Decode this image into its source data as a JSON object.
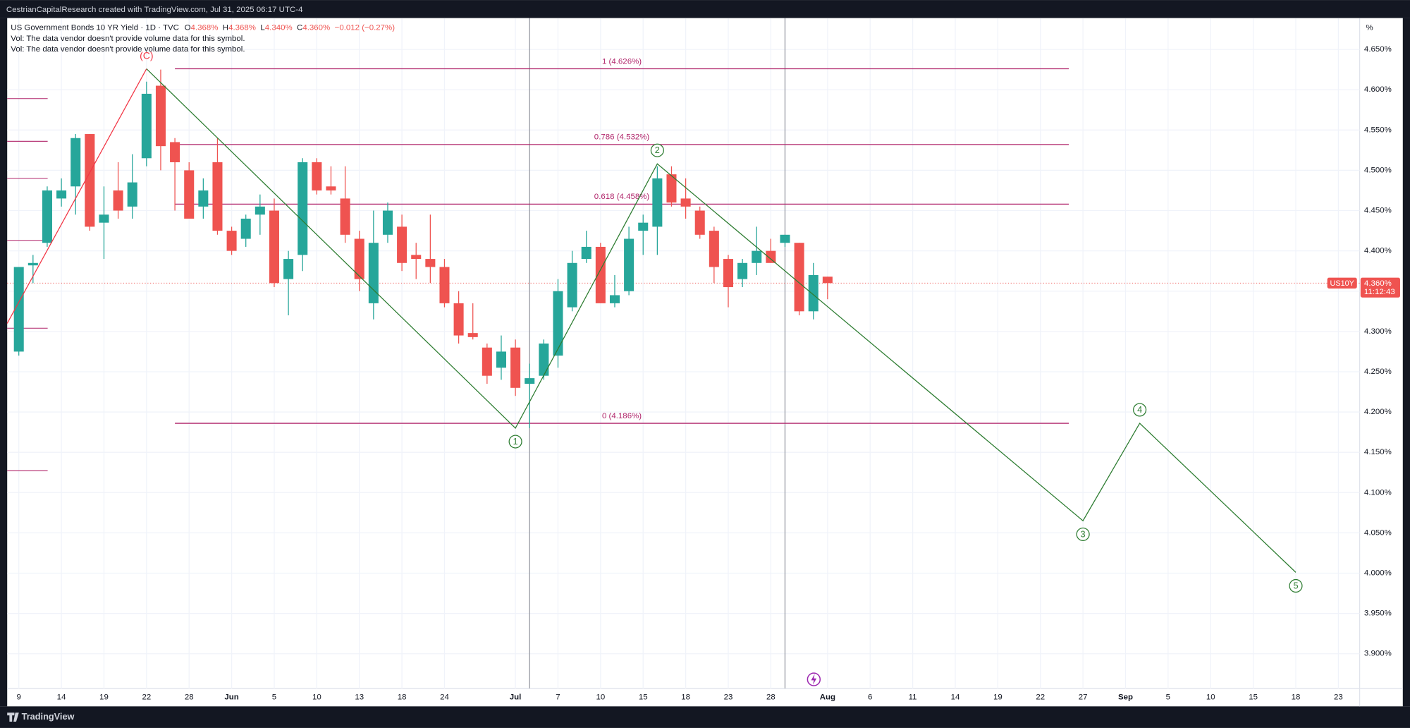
{
  "chart_data": {
    "type": "candlestick",
    "credit": "CestrianCapitalResearch created with TradingView.com, Jul 31, 2025 06:17 UTC-4",
    "title": "US Government Bonds 10 YR Yield · 1D · TVC",
    "ohlc_header": [
      {
        "key": "O",
        "value": "4.368%"
      },
      {
        "key": "H",
        "value": "4.368%"
      },
      {
        "key": "L",
        "value": "4.340%"
      },
      {
        "key": "C",
        "value": "4.360%"
      }
    ],
    "change": "−0.012 (−0.27%)",
    "notes": [
      "Vol: The data vendor doesn't provide volume data for this symbol.",
      "Vol: The data vendor doesn't provide volume data for this symbol."
    ],
    "axis_unit": "%",
    "up_color": "#26a69a",
    "down_color": "#ef5350",
    "grid": true,
    "candles": [
      {
        "o": 4.275,
        "h": 4.38,
        "l": 4.27,
        "c": 4.38
      },
      {
        "o": 4.382,
        "h": 4.395,
        "l": 4.36,
        "c": 4.385
      },
      {
        "o": 4.41,
        "h": 4.48,
        "l": 4.405,
        "c": 4.475
      },
      {
        "o": 4.465,
        "h": 4.49,
        "l": 4.455,
        "c": 4.475
      },
      {
        "o": 4.48,
        "h": 4.545,
        "l": 4.445,
        "c": 4.54
      },
      {
        "o": 4.545,
        "h": 4.545,
        "l": 4.425,
        "c": 4.43
      },
      {
        "o": 4.435,
        "h": 4.48,
        "l": 4.39,
        "c": 4.445
      },
      {
        "o": 4.475,
        "h": 4.51,
        "l": 4.44,
        "c": 4.45
      },
      {
        "o": 4.455,
        "h": 4.52,
        "l": 4.44,
        "c": 4.485
      },
      {
        "o": 4.515,
        "h": 4.61,
        "l": 4.505,
        "c": 4.595
      },
      {
        "o": 4.605,
        "h": 4.625,
        "l": 4.5,
        "c": 4.53
      },
      {
        "o": 4.535,
        "h": 4.54,
        "l": 4.45,
        "c": 4.51
      },
      {
        "o": 4.5,
        "h": 4.51,
        "l": 4.445,
        "c": 4.44
      },
      {
        "o": 4.455,
        "h": 4.49,
        "l": 4.44,
        "c": 4.475
      },
      {
        "o": 4.51,
        "h": 4.54,
        "l": 4.42,
        "c": 4.425
      },
      {
        "o": 4.425,
        "h": 4.43,
        "l": 4.395,
        "c": 4.4
      },
      {
        "o": 4.415,
        "h": 4.445,
        "l": 4.405,
        "c": 4.44
      },
      {
        "o": 4.445,
        "h": 4.47,
        "l": 4.42,
        "c": 4.455
      },
      {
        "o": 4.45,
        "h": 4.465,
        "l": 4.355,
        "c": 4.36
      },
      {
        "o": 4.365,
        "h": 4.4,
        "l": 4.32,
        "c": 4.39
      },
      {
        "o": 4.395,
        "h": 4.515,
        "l": 4.375,
        "c": 4.51
      },
      {
        "o": 4.51,
        "h": 4.515,
        "l": 4.47,
        "c": 4.475
      },
      {
        "o": 4.48,
        "h": 4.505,
        "l": 4.47,
        "c": 4.475
      },
      {
        "o": 4.465,
        "h": 4.505,
        "l": 4.41,
        "c": 4.42
      },
      {
        "o": 4.415,
        "h": 4.425,
        "l": 4.35,
        "c": 4.365
      },
      {
        "o": 4.335,
        "h": 4.45,
        "l": 4.315,
        "c": 4.41
      },
      {
        "o": 4.42,
        "h": 4.46,
        "l": 4.41,
        "c": 4.45
      },
      {
        "o": 4.43,
        "h": 4.445,
        "l": 4.375,
        "c": 4.385
      },
      {
        "o": 4.395,
        "h": 4.41,
        "l": 4.365,
        "c": 4.39
      },
      {
        "o": 4.39,
        "h": 4.445,
        "l": 4.36,
        "c": 4.38
      },
      {
        "o": 4.38,
        "h": 4.39,
        "l": 4.33,
        "c": 4.335
      },
      {
        "o": 4.335,
        "h": 4.35,
        "l": 4.285,
        "c": 4.295
      },
      {
        "o": 4.298,
        "h": 4.335,
        "l": 4.29,
        "c": 4.293
      },
      {
        "o": 4.28,
        "h": 4.285,
        "l": 4.235,
        "c": 4.245
      },
      {
        "o": 4.255,
        "h": 4.295,
        "l": 4.24,
        "c": 4.275
      },
      {
        "o": 4.28,
        "h": 4.29,
        "l": 4.22,
        "c": 4.23
      },
      {
        "o": 4.235,
        "h": 4.26,
        "l": 4.18,
        "c": 4.242
      },
      {
        "o": 4.245,
        "h": 4.29,
        "l": 4.24,
        "c": 4.285
      },
      {
        "o": 4.27,
        "h": 4.365,
        "l": 4.255,
        "c": 4.35
      },
      {
        "o": 4.33,
        "h": 4.4,
        "l": 4.325,
        "c": 4.385
      },
      {
        "o": 4.39,
        "h": 4.425,
        "l": 4.385,
        "c": 4.405
      },
      {
        "o": 4.405,
        "h": 4.41,
        "l": 4.335,
        "c": 4.335
      },
      {
        "o": 4.335,
        "h": 4.37,
        "l": 4.33,
        "c": 4.345
      },
      {
        "o": 4.35,
        "h": 4.43,
        "l": 4.345,
        "c": 4.415
      },
      {
        "o": 4.425,
        "h": 4.445,
        "l": 4.395,
        "c": 4.435
      },
      {
        "o": 4.43,
        "h": 4.505,
        "l": 4.395,
        "c": 4.49
      },
      {
        "o": 4.495,
        "h": 4.505,
        "l": 4.455,
        "c": 4.46
      },
      {
        "o": 4.465,
        "h": 4.49,
        "l": 4.44,
        "c": 4.455
      },
      {
        "o": 4.45,
        "h": 4.455,
        "l": 4.415,
        "c": 4.42
      },
      {
        "o": 4.425,
        "h": 4.43,
        "l": 4.36,
        "c": 4.38
      },
      {
        "o": 4.39,
        "h": 4.395,
        "l": 4.33,
        "c": 4.355
      },
      {
        "o": 4.365,
        "h": 4.39,
        "l": 4.355,
        "c": 4.385
      },
      {
        "o": 4.385,
        "h": 4.43,
        "l": 4.37,
        "c": 4.4
      },
      {
        "o": 4.4,
        "h": 4.415,
        "l": 4.385,
        "c": 4.385
      },
      {
        "o": 4.41,
        "h": 4.42,
        "l": 4.405,
        "c": 4.42
      },
      {
        "o": 4.41,
        "h": 4.41,
        "l": 4.32,
        "c": 4.325
      },
      {
        "o": 4.325,
        "h": 4.385,
        "l": 4.315,
        "c": 4.37
      },
      {
        "o": 4.368,
        "h": 4.368,
        "l": 4.34,
        "c": 4.36
      }
    ],
    "xlim": [
      0.18,
      95.5
    ],
    "xticks": [
      {
        "value": 1,
        "label": "9"
      },
      {
        "value": 4,
        "label": "14"
      },
      {
        "value": 7,
        "label": "19"
      },
      {
        "value": 10,
        "label": "22"
      },
      {
        "value": 13,
        "label": "28"
      },
      {
        "value": 16,
        "label": "Jun"
      },
      {
        "value": 19,
        "label": "5"
      },
      {
        "value": 22,
        "label": "10"
      },
      {
        "value": 25,
        "label": "13"
      },
      {
        "value": 28,
        "label": "18"
      },
      {
        "value": 31,
        "label": "24"
      },
      {
        "value": 36,
        "label": "Jul"
      },
      {
        "value": 39,
        "label": "7"
      },
      {
        "value": 42,
        "label": "10"
      },
      {
        "value": 45,
        "label": "15"
      },
      {
        "value": 48,
        "label": "18"
      },
      {
        "value": 51,
        "label": "23"
      },
      {
        "value": 54,
        "label": "28"
      },
      {
        "value": 58,
        "label": "Aug"
      },
      {
        "value": 61,
        "label": "6"
      },
      {
        "value": 64,
        "label": "11"
      },
      {
        "value": 67,
        "label": "14"
      },
      {
        "value": 70,
        "label": "19"
      },
      {
        "value": 73,
        "label": "22"
      },
      {
        "value": 76,
        "label": "27"
      },
      {
        "value": 79,
        "label": "Sep"
      },
      {
        "value": 82,
        "label": "5"
      },
      {
        "value": 85,
        "label": "10"
      },
      {
        "value": 88,
        "label": "15"
      },
      {
        "value": 91,
        "label": "18"
      },
      {
        "value": 94,
        "label": "23"
      }
    ],
    "ylim": [
      3.857,
      4.689
    ],
    "yticks": [
      {
        "value": 4.65,
        "label": "4.650%"
      },
      {
        "value": 4.6,
        "label": "4.600%"
      },
      {
        "value": 4.55,
        "label": "4.550%"
      },
      {
        "value": 4.5,
        "label": "4.500%"
      },
      {
        "value": 4.45,
        "label": "4.450%"
      },
      {
        "value": 4.4,
        "label": "4.400%"
      },
      {
        "value": 4.35,
        "label": "4.350%"
      },
      {
        "value": 4.3,
        "label": "4.300%"
      },
      {
        "value": 4.25,
        "label": "4.250%"
      },
      {
        "value": 4.2,
        "label": "4.200%"
      },
      {
        "value": 4.15,
        "label": "4.150%"
      },
      {
        "value": 4.1,
        "label": "4.100%"
      },
      {
        "value": 4.05,
        "label": "4.050%"
      },
      {
        "value": 4,
        "label": "4.000%"
      },
      {
        "value": 3.95,
        "label": "3.950%"
      },
      {
        "value": 3.9,
        "label": "3.900%"
      }
    ],
    "fib_levels": [
      {
        "value": 4.626,
        "label": "1 (4.626%)"
      },
      {
        "value": 4.532,
        "label": "0.786 (4.532%)"
      },
      {
        "value": 4.458,
        "label": "0.618 (4.458%)"
      },
      {
        "value": 4.186,
        "label": "0 (4.186%)"
      }
    ],
    "fib_range": [
      12,
      75
    ],
    "fib_color": "#b0246a",
    "side_levels": [
      4.589,
      4.536,
      4.49,
      4.413,
      4.304,
      4.127
    ],
    "vertical_lines": [
      37,
      55
    ],
    "wave_c": {
      "color": "#f23645",
      "x": [
        0.18,
        10
      ],
      "values": [
        4.31,
        4.626
      ],
      "label": "(C)"
    },
    "waves": {
      "color": "#2e7d32",
      "x": [
        10,
        36,
        46,
        76,
        80,
        91
      ],
      "values": [
        4.626,
        4.18,
        4.508,
        4.065,
        4.186,
        4.001
      ],
      "labels": [
        null,
        "1",
        "2",
        "3",
        "4",
        "5"
      ]
    },
    "last_price": 4.36,
    "last_price_label": "4.360%",
    "symbol": "US10Y",
    "countdown": "11:12:43",
    "brand": "TradingView"
  }
}
